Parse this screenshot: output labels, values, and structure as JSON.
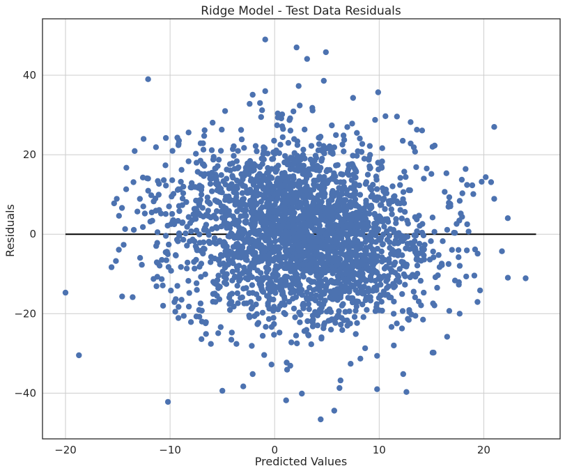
{
  "chart_data": {
    "type": "scatter",
    "title": "Ridge Model - Test Data Residuals",
    "xlabel": "Predicted Values",
    "ylabel": "Residuals",
    "xlim": [
      -22.2,
      27.3
    ],
    "ylim": [
      -51.5,
      54.2
    ],
    "x_ticks": [
      -20,
      -10,
      0,
      10,
      20
    ],
    "y_ticks": [
      -40,
      -20,
      0,
      20,
      40
    ],
    "x_tick_labels": [
      "−20",
      "−10",
      "0",
      "10",
      "20"
    ],
    "y_tick_labels": [
      "−40",
      "−20",
      "0",
      "20",
      "40"
    ],
    "grid": true,
    "legend": "none",
    "point_color": "#4c72b0",
    "reference_line": {
      "y": 0,
      "x_from": -20,
      "x_to": 25,
      "color": "#000000"
    },
    "series": [
      {
        "x": [
          -0.9,
          2.1,
          4.9,
          3.1,
          -12.1,
          2.3,
          4.7,
          -0.9,
          9.9,
          7.5,
          -2.1,
          -1.4,
          0.3,
          1.8,
          2.4,
          3.6,
          -1.2,
          10.6,
          11.7,
          13.0,
          13.6,
          14.1,
          21.0,
          -10.4,
          -9.3,
          -9.2,
          -12.1,
          -14.2,
          -15.1,
          -14.6,
          -13.5,
          -11.8,
          -12.6,
          -10.6,
          -10.1,
          -9.8,
          -11.2,
          -10.4,
          -9.6,
          -9.2,
          -8.9,
          -15.6,
          -14.9,
          -14.3,
          -12.7,
          -11.0,
          -10.3,
          -9.9,
          -10.7,
          -11.3,
          -10.8,
          -9.3,
          -8.9,
          -9.5,
          -8.0,
          15.3,
          15.1,
          17.9,
          18.4,
          19.8,
          20.7,
          18.9,
          19.0,
          21.0,
          17.7,
          16.8,
          17.4,
          15.1,
          16.5,
          14.1,
          24.0,
          16.7,
          14.0,
          15.2,
          -10.2,
          -5.0,
          -3.0,
          -2.1,
          1.1,
          2.6,
          4.4,
          5.7,
          6.3,
          9.8,
          12.6,
          15.1,
          12.3,
          -1.0,
          -0.3,
          1.5,
          6.2,
          9.8,
          -6.1,
          -7.0,
          -2.4,
          0.9,
          3.2,
          -6.6,
          -5.4,
          3.5,
          8.2,
          11.4
        ],
        "y": [
          49.0,
          47.0,
          45.8,
          44.1,
          39.0,
          37.3,
          38.6,
          36.0,
          35.7,
          34.3,
          35.1,
          33.0,
          30.4,
          30.9,
          32.4,
          31.8,
          31.2,
          29.7,
          29.6,
          28.2,
          26.3,
          26.1,
          27.0,
          24.2,
          24.3,
          22.4,
          14.0,
          11.3,
          8.9,
          6.6,
          13.1,
          9.8,
          1.8,
          13.6,
          7.0,
          5.1,
          0.5,
          -0.4,
          2.5,
          11.3,
          16.2,
          -8.3,
          -3.9,
          1.3,
          -7.7,
          -7.9,
          -4.4,
          -9.2,
          -12.9,
          -13.1,
          -11.3,
          -13.0,
          -16.5,
          -19.5,
          -22.1,
          22.3,
          22.0,
          13.7,
          12.4,
          13.2,
          13.1,
          12.3,
          10.1,
          8.9,
          8.4,
          7.6,
          2.6,
          4.2,
          1.1,
          0.4,
          -11.1,
          -19.3,
          -17.9,
          -29.8,
          -42.2,
          -39.4,
          -38.3,
          -35.2,
          -41.8,
          -40.1,
          -46.6,
          -44.4,
          -36.8,
          -39.0,
          -39.7,
          -29.8,
          -35.2,
          -30.4,
          -32.8,
          -33.1,
          -38.7,
          -30.6,
          -27.6,
          -26.4,
          -20.9,
          -19.8,
          -25.3,
          -22.4,
          -24.9,
          -27.7,
          -31.3,
          -28.0
        ]
      }
    ],
    "cloud_upper": {
      "center": [
        1.5,
        8.0
      ],
      "spread": [
        5.8,
        8.2
      ],
      "slope": 0.0
    },
    "cloud_lower": {
      "center": [
        4.0,
        -7.5
      ],
      "spread": [
        5.8,
        8.2
      ],
      "slope": 0.0
    }
  }
}
